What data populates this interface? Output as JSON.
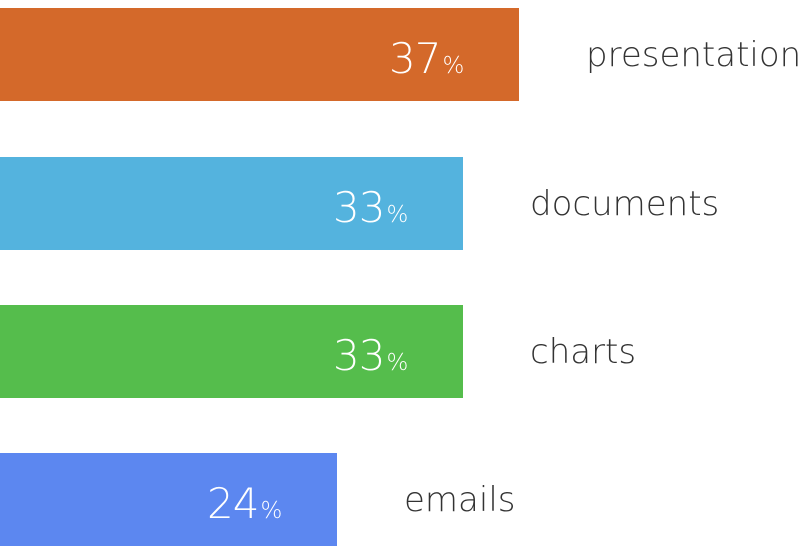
{
  "chart_data": {
    "type": "bar",
    "orientation": "horizontal",
    "title": "",
    "xlabel": "",
    "ylabel": "",
    "value_suffix": "%",
    "xlim": [
      0,
      57
    ],
    "grid": false,
    "legend": "none",
    "categories": [
      "presentations",
      "documents",
      "charts",
      "emails"
    ],
    "values": [
      37,
      33,
      33,
      24
    ],
    "colors": [
      "#D4692A",
      "#54B3DE",
      "#55BD4C",
      "#5C87F0"
    ]
  }
}
